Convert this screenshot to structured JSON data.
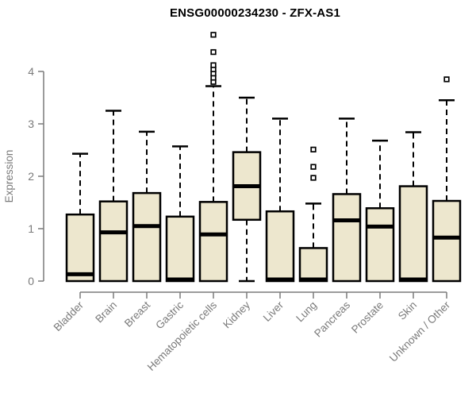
{
  "chart_data": {
    "type": "boxplot",
    "title": "ENSG00000234230 - ZFX-AS1",
    "xlabel": "",
    "ylabel": "Expression",
    "y_ticks": [
      0,
      1,
      2,
      3,
      4
    ],
    "ylim": [
      0,
      4.75
    ],
    "grid": false,
    "legend": false,
    "categories": [
      "Bladder",
      "Brain",
      "Breast",
      "Gastric",
      "Hematopoietic cells",
      "Kidney",
      "Liver",
      "Lung",
      "Pancreas",
      "Prostate",
      "Skin",
      "Unknown / Other"
    ],
    "series": [
      {
        "category": "Bladder",
        "whisker_low": 0,
        "q1": 0,
        "median": 0.13,
        "q3": 1.27,
        "whisker_high": 2.43,
        "outliers": []
      },
      {
        "category": "Brain",
        "whisker_low": 0,
        "q1": 0,
        "median": 0.93,
        "q3": 1.52,
        "whisker_high": 3.25,
        "outliers": []
      },
      {
        "category": "Breast",
        "whisker_low": 0,
        "q1": 0,
        "median": 1.05,
        "q3": 1.68,
        "whisker_high": 2.85,
        "outliers": []
      },
      {
        "category": "Gastric",
        "whisker_low": 0,
        "q1": 0,
        "median": 0.03,
        "q3": 1.23,
        "whisker_high": 2.57,
        "outliers": []
      },
      {
        "category": "Hematopoietic cells",
        "whisker_low": 0,
        "q1": 0,
        "median": 0.89,
        "q3": 1.51,
        "whisker_high": 3.72,
        "outliers": [
          3.8,
          3.88,
          3.96,
          4.04,
          4.12,
          4.37,
          4.7
        ]
      },
      {
        "category": "Kidney",
        "whisker_low": 0,
        "q1": 1.17,
        "median": 1.81,
        "q3": 2.46,
        "whisker_high": 3.5,
        "outliers": []
      },
      {
        "category": "Liver",
        "whisker_low": 0,
        "q1": 0,
        "median": 0.03,
        "q3": 1.33,
        "whisker_high": 3.1,
        "outliers": []
      },
      {
        "category": "Lung",
        "whisker_low": 0,
        "q1": 0,
        "median": 0.03,
        "q3": 0.63,
        "whisker_high": 1.48,
        "outliers": [
          1.97,
          2.18,
          2.51
        ]
      },
      {
        "category": "Pancreas",
        "whisker_low": 0,
        "q1": 0,
        "median": 1.16,
        "q3": 1.66,
        "whisker_high": 3.1,
        "outliers": []
      },
      {
        "category": "Prostate",
        "whisker_low": 0,
        "q1": 0,
        "median": 1.04,
        "q3": 1.39,
        "whisker_high": 2.68,
        "outliers": []
      },
      {
        "category": "Skin",
        "whisker_low": 0,
        "q1": 0,
        "median": 0.03,
        "q3": 1.81,
        "whisker_high": 2.84,
        "outliers": []
      },
      {
        "category": "Unknown / Other",
        "whisker_low": 0,
        "q1": 0,
        "median": 0.83,
        "q3": 1.53,
        "whisker_high": 3.45,
        "outliers": [
          3.85
        ]
      }
    ],
    "colors": {
      "box_fill": "#ede7ce",
      "box_border": "#000000",
      "median": "#000000",
      "whisker": "#000000",
      "outlier_fill": "#ffffff",
      "axis": "#7a7a7a",
      "tick_label": "#7a7a7a",
      "title": "#000000",
      "background": "#ffffff"
    }
  }
}
